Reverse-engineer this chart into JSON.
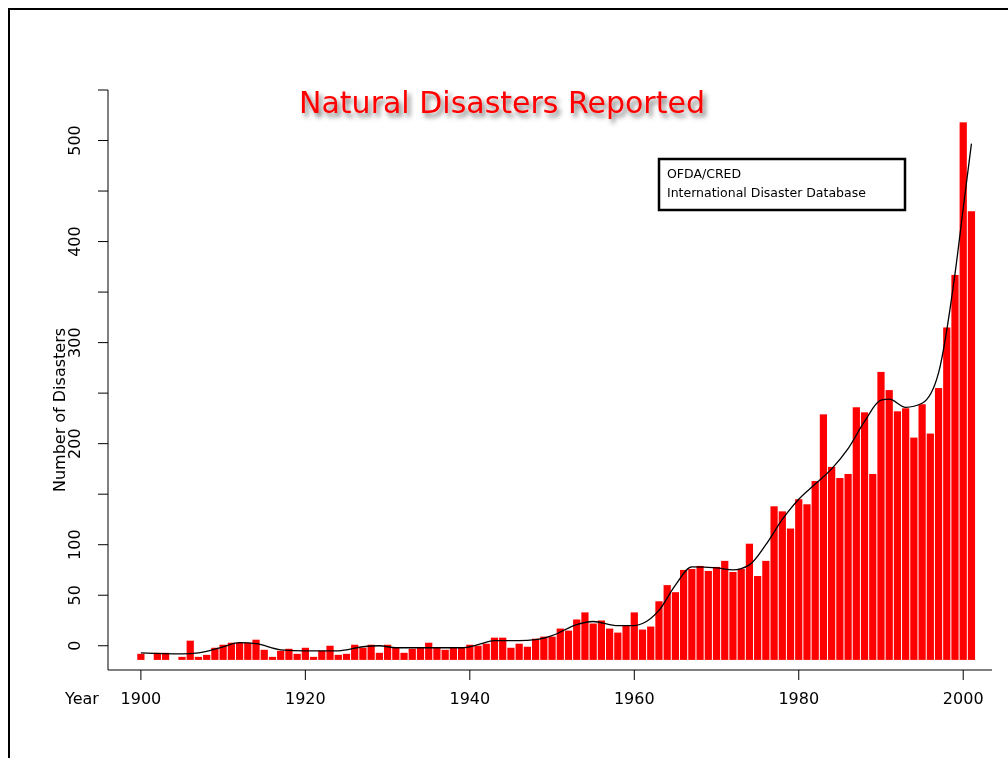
{
  "chart_data": {
    "type": "bar",
    "title": "Natural Disasters Reported",
    "xlabel": "Year",
    "ylabel": "Number of Disasters",
    "annotations": [
      "OFDA/CRED",
      "International Disaster Database"
    ],
    "xlim": [
      1896,
      2003.5
    ],
    "xticks": [
      1900,
      1920,
      1940,
      1960,
      1980,
      2000
    ],
    "ylim": [
      -24,
      550
    ],
    "yticks": [
      0,
      50,
      100,
      {
        "value": 150,
        "label": null
      },
      200,
      {
        "value": 250,
        "label": null
      },
      300,
      {
        "value": 350,
        "label": null
      },
      400,
      {
        "value": 450,
        "label": null
      },
      500,
      {
        "value": 550,
        "label": null
      }
    ],
    "grid": false,
    "x": [
      1900,
      1902,
      1903,
      1905,
      1906,
      1907,
      1908,
      1909,
      1910,
      1911,
      1912,
      1913,
      1914,
      1915,
      1916,
      1917,
      1918,
      1919,
      1920,
      1921,
      1922,
      1923,
      1924,
      1925,
      1926,
      1927,
      1928,
      1929,
      1930,
      1931,
      1932,
      1933,
      1934,
      1935,
      1936,
      1937,
      1938,
      1939,
      1940,
      1941,
      1942,
      1943,
      1944,
      1945,
      1946,
      1947,
      1948,
      1949,
      1950,
      1951,
      1952,
      1953,
      1954,
      1955,
      1956,
      1957,
      1958,
      1959,
      1960,
      1961,
      1962,
      1963,
      1964,
      1965,
      1966,
      1967,
      1968,
      1969,
      1970,
      1971,
      1972,
      1973,
      1974,
      1975,
      1976,
      1977,
      1978,
      1979,
      1980,
      1981,
      1982,
      1983,
      1984,
      1985,
      1986,
      1987,
      1988,
      1989,
      1990,
      1991,
      1992,
      1993,
      1994,
      1995,
      1996,
      1997,
      1998,
      1999,
      2000,
      2001
    ],
    "series": [
      {
        "color": "#ff0000",
        "values": [
          6,
          7,
          7,
          3,
          19,
          3,
          5,
          12,
          15,
          17,
          17,
          17,
          20,
          10,
          3,
          9,
          11,
          6,
          12,
          3,
          9,
          14,
          5,
          6,
          15,
          12,
          15,
          7,
          15,
          12,
          7,
          11,
          12,
          17,
          12,
          10,
          12,
          12,
          15,
          14,
          16,
          22,
          22,
          12,
          16,
          13,
          21,
          23,
          23,
          31,
          29,
          40,
          47,
          36,
          39,
          31,
          27,
          34,
          47,
          30,
          33,
          58,
          74,
          67,
          89,
          90,
          93,
          88,
          92,
          98,
          87,
          90,
          115,
          83,
          98,
          152,
          147,
          130,
          159,
          154,
          177,
          243,
          191,
          180,
          184,
          250,
          245,
          184,
          285,
          267,
          246,
          249,
          220,
          253,
          224,
          269,
          329,
          381,
          532,
          444
        ],
        "base": [
          -14,
          -14,
          -14,
          -14,
          -14,
          -14,
          -14,
          -14,
          -14,
          -14,
          -14,
          -14,
          -14,
          -14,
          -14,
          -14,
          -14,
          -14,
          -14,
          -14,
          -14,
          -14,
          -14,
          -14,
          -14,
          -14,
          -14,
          -14,
          -14,
          -14,
          -14,
          -14,
          -14,
          -14,
          -14,
          -14,
          -14,
          -14,
          -14,
          -14,
          -14,
          -14,
          -14,
          -14,
          -14,
          -14,
          -14,
          -14,
          -14,
          -14,
          -14,
          -14,
          -14,
          -14,
          -14,
          -14,
          -14,
          -14,
          -14,
          -14,
          -14,
          -14,
          -14,
          -14,
          -14,
          -14,
          -14,
          -14,
          -14,
          -14,
          -14,
          -14,
          -14,
          -14,
          -14,
          -14,
          -14,
          -14,
          -14,
          -14,
          -14,
          -14,
          -14,
          -14,
          -14,
          -14,
          -14,
          -14,
          -14,
          -14,
          -14,
          -14,
          -14,
          -14,
          -14,
          -14,
          -14,
          -14,
          -14,
          -14
        ]
      },
      {
        "type": "line",
        "color": "#000000",
        "line_style": "solid",
        "marker": "none",
        "x": [
          1900,
          1905,
          1907,
          1910,
          1912,
          1914,
          1917,
          1920,
          1924,
          1927,
          1929,
          1931,
          1935,
          1939,
          1941,
          1943,
          1946,
          1948,
          1950,
          1953,
          1955,
          1958,
          1960,
          1961,
          1963,
          1965,
          1967,
          1970,
          1972,
          1974,
          1976,
          1978,
          1980,
          1982,
          1984,
          1986,
          1988,
          1990,
          1991,
          1993,
          1995,
          1997,
          1999,
          2000,
          2001
        ],
        "values": [
          -7,
          -8,
          -7,
          -1,
          3,
          2,
          -4,
          -5,
          -5,
          -1,
          0,
          -2,
          -2,
          -2,
          1,
          5,
          5,
          6,
          10,
          21,
          24,
          20,
          20,
          22,
          35,
          60,
          78,
          77,
          75,
          80,
          100,
          125,
          145,
          160,
          175,
          195,
          222,
          243,
          244,
          236,
          240,
          270,
          368,
          433,
          497
        ]
      }
    ]
  }
}
